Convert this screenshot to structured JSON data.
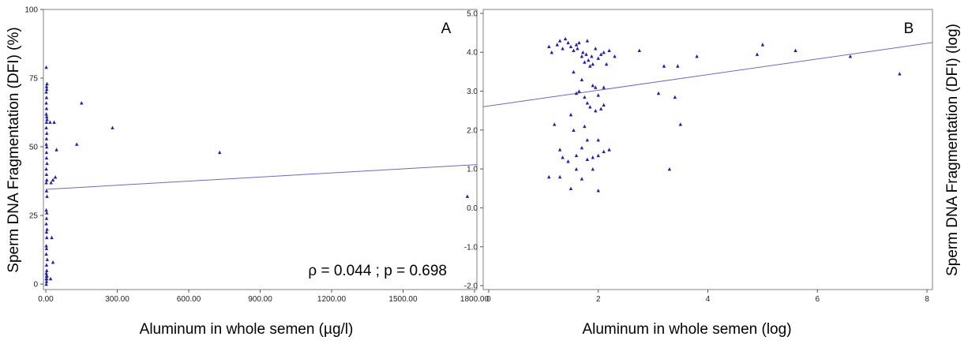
{
  "figure": {
    "colors": {
      "points": "#1f1fa8",
      "trend_line": "#6b6bb8",
      "frame": "#808080",
      "text": "#000000"
    }
  },
  "chart_data": [
    {
      "type": "scatter",
      "panel_label": "A",
      "xlabel": "Aluminum in whole semen (µg/l)",
      "ylabel": "Sperm DNA Fragmentation (DFI) (%)",
      "xlim": [
        -10,
        1810
      ],
      "ylim": [
        -2,
        100
      ],
      "x_ticks": [
        0,
        300,
        600,
        900,
        1200,
        1500,
        1800
      ],
      "x_tick_labels": [
        "0.00",
        "300.00",
        "600.00",
        "900.00",
        "1200.00",
        "1500.00",
        "1800.00"
      ],
      "y_ticks": [
        0,
        25,
        50,
        75,
        100
      ],
      "y_tick_labels": [
        "0",
        "25",
        "50",
        "75",
        "100"
      ],
      "annotation": "ρ = 0.044 ; p = 0.698",
      "trend_line": {
        "x": [
          0,
          1810
        ],
        "y": [
          34.5,
          43.5
        ]
      },
      "points": {
        "x": [
          2,
          3,
          4,
          2,
          3,
          5,
          2,
          4,
          3,
          6,
          2,
          3,
          2,
          4,
          3,
          5,
          2,
          3,
          4,
          2,
          5,
          3,
          2,
          4,
          3,
          2,
          5,
          3,
          4,
          2,
          3,
          4,
          2,
          3,
          5,
          4,
          2,
          3,
          2,
          3,
          2,
          4,
          3,
          5,
          2,
          3,
          20,
          25,
          22,
          30,
          35,
          45,
          130,
          150,
          280,
          730,
          1770,
          30,
          40,
          18
        ],
        "y": [
          0,
          1,
          2,
          2,
          3,
          3,
          4,
          5,
          7,
          9,
          11,
          13,
          14,
          17,
          19,
          20,
          22,
          24,
          26,
          27,
          32,
          34,
          37,
          38,
          40,
          42,
          44,
          48,
          50,
          51,
          53,
          55,
          57,
          59,
          60,
          61,
          62,
          64,
          66,
          68,
          70,
          71,
          72,
          73,
          79,
          46,
          2,
          17,
          37,
          38,
          59,
          49,
          51,
          66,
          57,
          48,
          32,
          8,
          39,
          59
        ]
      }
    },
    {
      "type": "scatter",
      "panel_label": "B",
      "xlabel": "Aluminum in whole semen (log)",
      "ylabel": "Sperm DNA Fragmentation (DFI) (log)",
      "xlim": [
        -0.1,
        8.1
      ],
      "ylim": [
        -2.1,
        5.1
      ],
      "x_ticks": [
        0,
        2,
        4,
        6,
        8
      ],
      "x_tick_labels": [
        "0",
        "2",
        "4",
        "6",
        "8"
      ],
      "y_ticks": [
        -2,
        -1,
        0,
        1,
        2,
        3,
        4,
        5
      ],
      "y_tick_labels": [
        "-2.0",
        "-1.0",
        "0.0",
        "1.0",
        "2.0",
        "3.0",
        "4.0",
        "5.0"
      ],
      "trend_line": {
        "x": [
          -0.1,
          8.1
        ],
        "y": [
          2.6,
          4.25
        ]
      },
      "points": {
        "x": [
          1.1,
          1.15,
          1.25,
          1.3,
          1.35,
          1.4,
          1.45,
          1.5,
          1.55,
          1.6,
          1.62,
          1.65,
          1.7,
          1.72,
          1.75,
          1.78,
          1.8,
          1.82,
          1.85,
          1.88,
          1.9,
          1.95,
          2.0,
          2.05,
          2.1,
          2.15,
          2.2,
          2.3,
          1.2,
          1.3,
          1.5,
          1.6,
          1.7,
          1.8,
          1.9,
          2.0,
          2.1,
          1.55,
          1.65,
          1.75,
          1.85,
          1.95,
          2.05,
          1.45,
          1.6,
          1.7,
          1.8,
          1.9,
          2.0,
          2.1,
          2.2,
          1.3,
          1.5,
          1.7,
          1.9,
          2.0,
          1.1,
          1.35,
          1.6,
          1.8,
          2.0,
          1.55,
          1.75,
          1.95,
          2.1,
          2.75,
          3.1,
          3.2,
          3.3,
          3.4,
          3.45,
          3.5,
          3.8,
          4.9,
          5.0,
          5.6,
          6.6,
          7.5
        ],
        "y": [
          4.15,
          4.0,
          4.2,
          4.3,
          4.1,
          4.35,
          4.25,
          4.15,
          4.05,
          4.2,
          4.1,
          4.25,
          3.9,
          4.0,
          3.75,
          3.95,
          4.3,
          3.8,
          3.65,
          3.9,
          3.7,
          4.1,
          3.85,
          3.95,
          4.0,
          3.7,
          4.05,
          3.9,
          2.15,
          1.5,
          2.4,
          2.95,
          3.3,
          2.7,
          3.15,
          2.9,
          3.1,
          3.5,
          3.0,
          2.85,
          2.6,
          3.1,
          2.55,
          1.2,
          1.35,
          1.55,
          1.75,
          1.3,
          1.35,
          1.45,
          1.5,
          0.8,
          0.5,
          0.75,
          1.0,
          0.45,
          0.8,
          1.3,
          1.0,
          1.25,
          1.75,
          2.0,
          2.1,
          2.5,
          2.65,
          4.05,
          2.95,
          3.65,
          1.0,
          2.85,
          3.65,
          2.15,
          3.9,
          3.95,
          4.2,
          4.05,
          3.9,
          3.45
        ]
      }
    }
  ]
}
